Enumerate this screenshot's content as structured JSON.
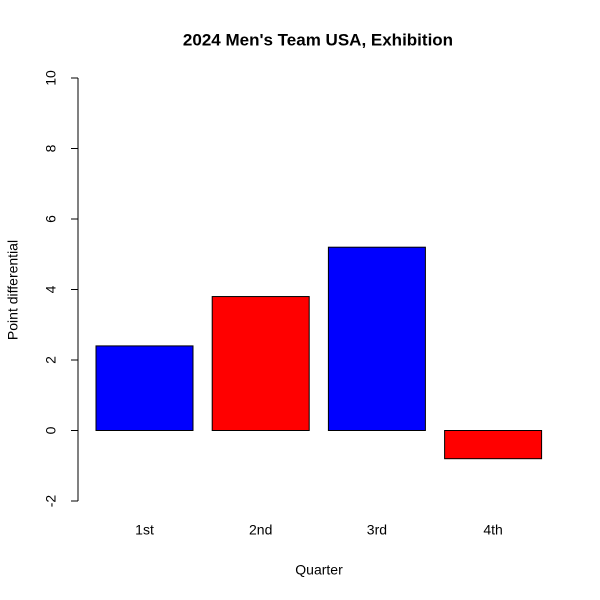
{
  "chart_data": {
    "type": "bar",
    "title": "2024 Men's Team USA, Exhibition",
    "x_label": "Quarter",
    "y_label": "Point differential",
    "categories": [
      "1st",
      "2nd",
      "3rd",
      "4th"
    ],
    "values": [
      2.4,
      3.8,
      5.2,
      -0.8
    ],
    "colors": [
      "#0000ff",
      "#ff0000",
      "#0000ff",
      "#ff0000"
    ],
    "ylim": [
      -2,
      10
    ],
    "yticks": [
      -2,
      0,
      2,
      4,
      6,
      8,
      10
    ]
  }
}
